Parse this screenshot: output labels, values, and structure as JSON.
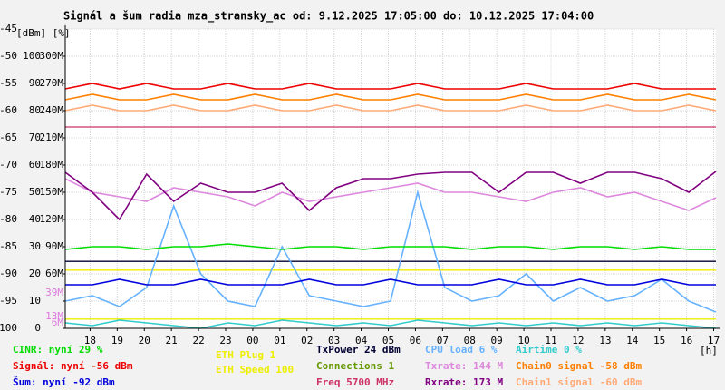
{
  "chart_data": {
    "type": "line",
    "title": "Signál a šum radia mza_stransky_ac od: 9.12.2025 17:05:00 do: 10.12.2025 17:04:00",
    "y_axis_label": "[dBm] [%]",
    "x_axis_label": "[h]",
    "grid": true,
    "xlim": [
      0,
      1440
    ],
    "xticks": [
      {
        "value": 55,
        "label": "18"
      },
      {
        "value": 115,
        "label": "19"
      },
      {
        "value": 175,
        "label": "20"
      },
      {
        "value": 235,
        "label": "21"
      },
      {
        "value": 295,
        "label": "22"
      },
      {
        "value": 355,
        "label": "23"
      },
      {
        "value": 415,
        "label": "00"
      },
      {
        "value": 475,
        "label": "01"
      },
      {
        "value": 535,
        "label": "02"
      },
      {
        "value": 595,
        "label": "03"
      },
      {
        "value": 655,
        "label": "04"
      },
      {
        "value": 715,
        "label": "05"
      },
      {
        "value": 775,
        "label": "06"
      },
      {
        "value": 835,
        "label": "07"
      },
      {
        "value": 895,
        "label": "08"
      },
      {
        "value": 955,
        "label": "09"
      },
      {
        "value": 1015,
        "label": "10"
      },
      {
        "value": 1075,
        "label": "11"
      },
      {
        "value": 1135,
        "label": "12"
      },
      {
        "value": 1195,
        "label": "13"
      },
      {
        "value": 1255,
        "label": "14"
      },
      {
        "value": 1315,
        "label": "15"
      },
      {
        "value": 1375,
        "label": "16"
      },
      {
        "value": 1435,
        "label": "17"
      }
    ],
    "ylim": [
      -100,
      -45
    ],
    "yticks": [
      -100,
      -95,
      -90,
      -85,
      -80,
      -75,
      -70,
      -65,
      -60,
      -55,
      -50,
      -45
    ],
    "y2lim": [
      0,
      110
    ],
    "y2ticks": [
      0,
      10,
      20,
      30,
      40,
      50,
      60,
      70,
      80,
      90,
      100
    ],
    "y3lim": [
      0,
      330
    ],
    "y3ticks": [
      {
        "value": 60,
        "label": "60M"
      },
      {
        "value": 90,
        "label": "90M"
      },
      {
        "value": 120,
        "label": "120M"
      },
      {
        "value": 150,
        "label": "150M"
      },
      {
        "value": 180,
        "label": "180M"
      },
      {
        "value": 210,
        "label": "210M"
      },
      {
        "value": 240,
        "label": "240M"
      },
      {
        "value": 270,
        "label": "270M"
      },
      {
        "value": 300,
        "label": "300M"
      }
    ],
    "y3_markers": [
      {
        "value": 39,
        "label": "39M",
        "color": "#dd77dd"
      },
      {
        "value": 13,
        "label": "13M",
        "color": "#dd77dd"
      },
      {
        "value": 6,
        "label": "6M",
        "color": "#dd77dd"
      }
    ],
    "x": [
      0,
      60,
      120,
      180,
      240,
      300,
      360,
      420,
      480,
      540,
      600,
      660,
      720,
      780,
      840,
      900,
      960,
      1020,
      1080,
      1140,
      1200,
      1260,
      1320,
      1380,
      1440
    ],
    "series": [
      {
        "name": "CINR: nyní 29 %",
        "color": "#00dd00",
        "axis": "y2",
        "values": [
          29,
          30,
          30,
          29,
          30,
          30,
          31,
          30,
          29,
          30,
          30,
          29,
          30,
          30,
          30,
          29,
          30,
          30,
          29,
          30,
          30,
          29,
          30,
          29,
          29
        ]
      },
      {
        "name": "Signál: nyní -56 dBm",
        "color": "#ee0000",
        "axis": "y",
        "values": [
          -56,
          -55,
          -56,
          -55,
          -56,
          -56,
          -55,
          -56,
          -56,
          -55,
          -56,
          -56,
          -56,
          -55,
          -56,
          -56,
          -56,
          -55,
          -56,
          -56,
          -56,
          -55,
          -56,
          -56,
          -56
        ]
      },
      {
        "name": "Šum: nyní -92 dBm",
        "color": "#0000dd",
        "axis": "y",
        "values": [
          -92,
          -92,
          -91,
          -92,
          -92,
          -91,
          -92,
          -92,
          -92,
          -91,
          -92,
          -92,
          -91,
          -92,
          -92,
          -92,
          -91,
          -92,
          -92,
          -91,
          -92,
          -92,
          -91,
          -92,
          -92
        ]
      },
      {
        "name": "CPU load 6 %",
        "color": "#66b2ff",
        "axis": "y2",
        "values": [
          10,
          12,
          8,
          15,
          45,
          20,
          10,
          8,
          30,
          12,
          10,
          8,
          10,
          50,
          15,
          10,
          12,
          20,
          10,
          15,
          10,
          12,
          18,
          10,
          6
        ]
      },
      {
        "name": "Txrate: 144 M",
        "color": "#dd88dd",
        "axis": "y3",
        "values": [
          165,
          150,
          145,
          140,
          155,
          150,
          145,
          135,
          150,
          140,
          145,
          150,
          155,
          160,
          150,
          150,
          145,
          140,
          150,
          155,
          145,
          150,
          140,
          130,
          144
        ]
      },
      {
        "name": "Rxrate: 173 M",
        "color": "#800080",
        "axis": "y3",
        "values": [
          172,
          150,
          120,
          170,
          140,
          160,
          150,
          150,
          160,
          130,
          155,
          165,
          165,
          170,
          172,
          172,
          150,
          172,
          172,
          160,
          172,
          172,
          165,
          150,
          173
        ]
      },
      {
        "name": "Airtime 0 %",
        "color": "#33cccc",
        "axis": "y2",
        "values": [
          2,
          1,
          3,
          2,
          1,
          0,
          2,
          1,
          3,
          2,
          1,
          2,
          1,
          3,
          2,
          1,
          2,
          1,
          2,
          1,
          2,
          1,
          2,
          1,
          0
        ]
      },
      {
        "name": "Chain0 signal -58 dBm",
        "color": "#ff8000",
        "axis": "y",
        "values": [
          -58,
          -57,
          -58,
          -58,
          -57,
          -58,
          -58,
          -57,
          -58,
          -58,
          -57,
          -58,
          -58,
          -57,
          -58,
          -58,
          -58,
          -57,
          -58,
          -58,
          -57,
          -58,
          -58,
          -57,
          -58
        ]
      },
      {
        "name": "Chain1 signal -60 dBm",
        "color": "#ffaa77",
        "axis": "y",
        "values": [
          -60,
          -59,
          -60,
          -60,
          -59,
          -60,
          -60,
          -59,
          -60,
          -60,
          -59,
          -60,
          -60,
          -59,
          -60,
          -60,
          -60,
          -59,
          -60,
          -60,
          -59,
          -60,
          -60,
          -59,
          -60
        ]
      }
    ],
    "reference_lines": [
      {
        "name": "ETH Plug 1",
        "color": "#eeee00",
        "axis": "y",
        "value": -98.3
      },
      {
        "name": "ETH Speed 100",
        "color": "#eeee00",
        "axis": "y",
        "value": -89.3
      },
      {
        "name": "TxPower 24 dBm",
        "color": "#000033",
        "axis": "y",
        "value": -87.7
      },
      {
        "name": "Connections 1",
        "color": "#669900",
        "axis": "y",
        "value": null
      },
      {
        "name": "Freq 5700 MHz",
        "color": "#cc3366",
        "axis": "y",
        "value": -63
      }
    ]
  }
}
